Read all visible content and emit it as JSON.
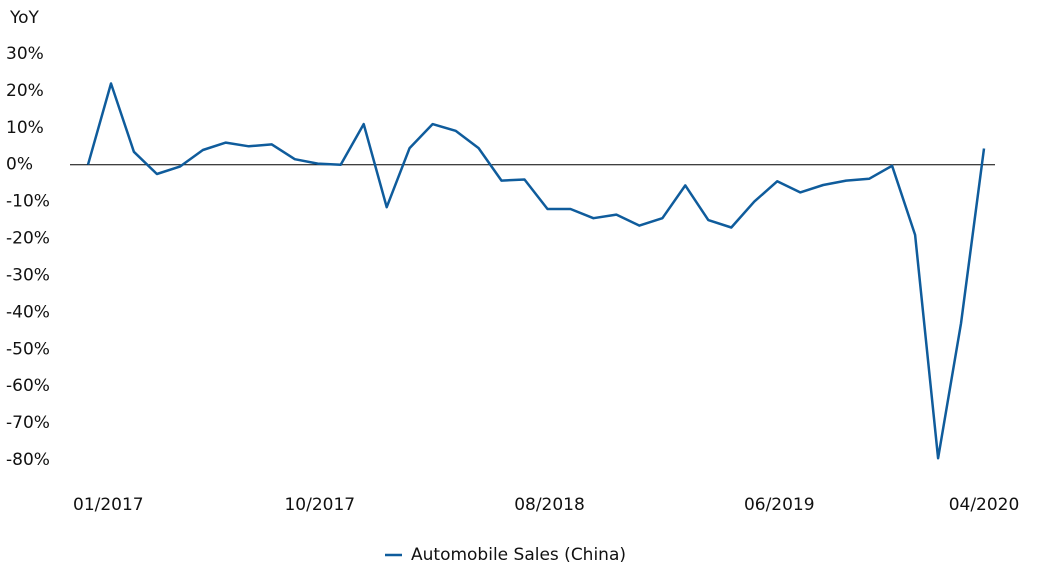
{
  "chart_data": {
    "type": "line",
    "y_label": "YoY",
    "categories": [
      "01/2017",
      null,
      null,
      null,
      null,
      null,
      null,
      null,
      null,
      "10/2017",
      null,
      null,
      null,
      null,
      null,
      null,
      null,
      null,
      null,
      "08/2018",
      null,
      null,
      null,
      null,
      null,
      null,
      null,
      null,
      null,
      "06/2019",
      null,
      null,
      null,
      null,
      null,
      null,
      null,
      null,
      null,
      "04/2020"
    ],
    "series": [
      {
        "name": "Automobile Sales (China)",
        "color": "#0f5c9c",
        "values": [
          0,
          22,
          3.5,
          -2.5,
          -0.5,
          4,
          6,
          5,
          5.5,
          1.5,
          0.3,
          0,
          11,
          -11.5,
          4.5,
          11,
          9.2,
          4.5,
          -4.3,
          -4,
          -12,
          -12,
          -14.5,
          -13.5,
          -16.5,
          -14.5,
          -5.6,
          -15,
          -17,
          -10,
          -4.5,
          -7.5,
          -5.5,
          -4.3,
          -3.8,
          -0.3,
          -19,
          -79.5,
          -43,
          4.4
        ]
      }
    ],
    "ylim": [
      -90,
      30
    ],
    "yticks": [
      {
        "value": 30,
        "label": "30%"
      },
      {
        "value": 20,
        "label": "20%"
      },
      {
        "value": 10,
        "label": "10%"
      },
      {
        "value": 0,
        "label": "0%"
      },
      {
        "value": -10,
        "label": "-10%"
      },
      {
        "value": -20,
        "label": "-20%"
      },
      {
        "value": -30,
        "label": "-30%"
      },
      {
        "value": -40,
        "label": "-40%"
      },
      {
        "value": -50,
        "label": "-50%"
      },
      {
        "value": -60,
        "label": "-60%"
      },
      {
        "value": -70,
        "label": "-70%"
      },
      {
        "value": -80,
        "label": "-80%"
      }
    ],
    "grid": false,
    "legend": "bottom"
  }
}
